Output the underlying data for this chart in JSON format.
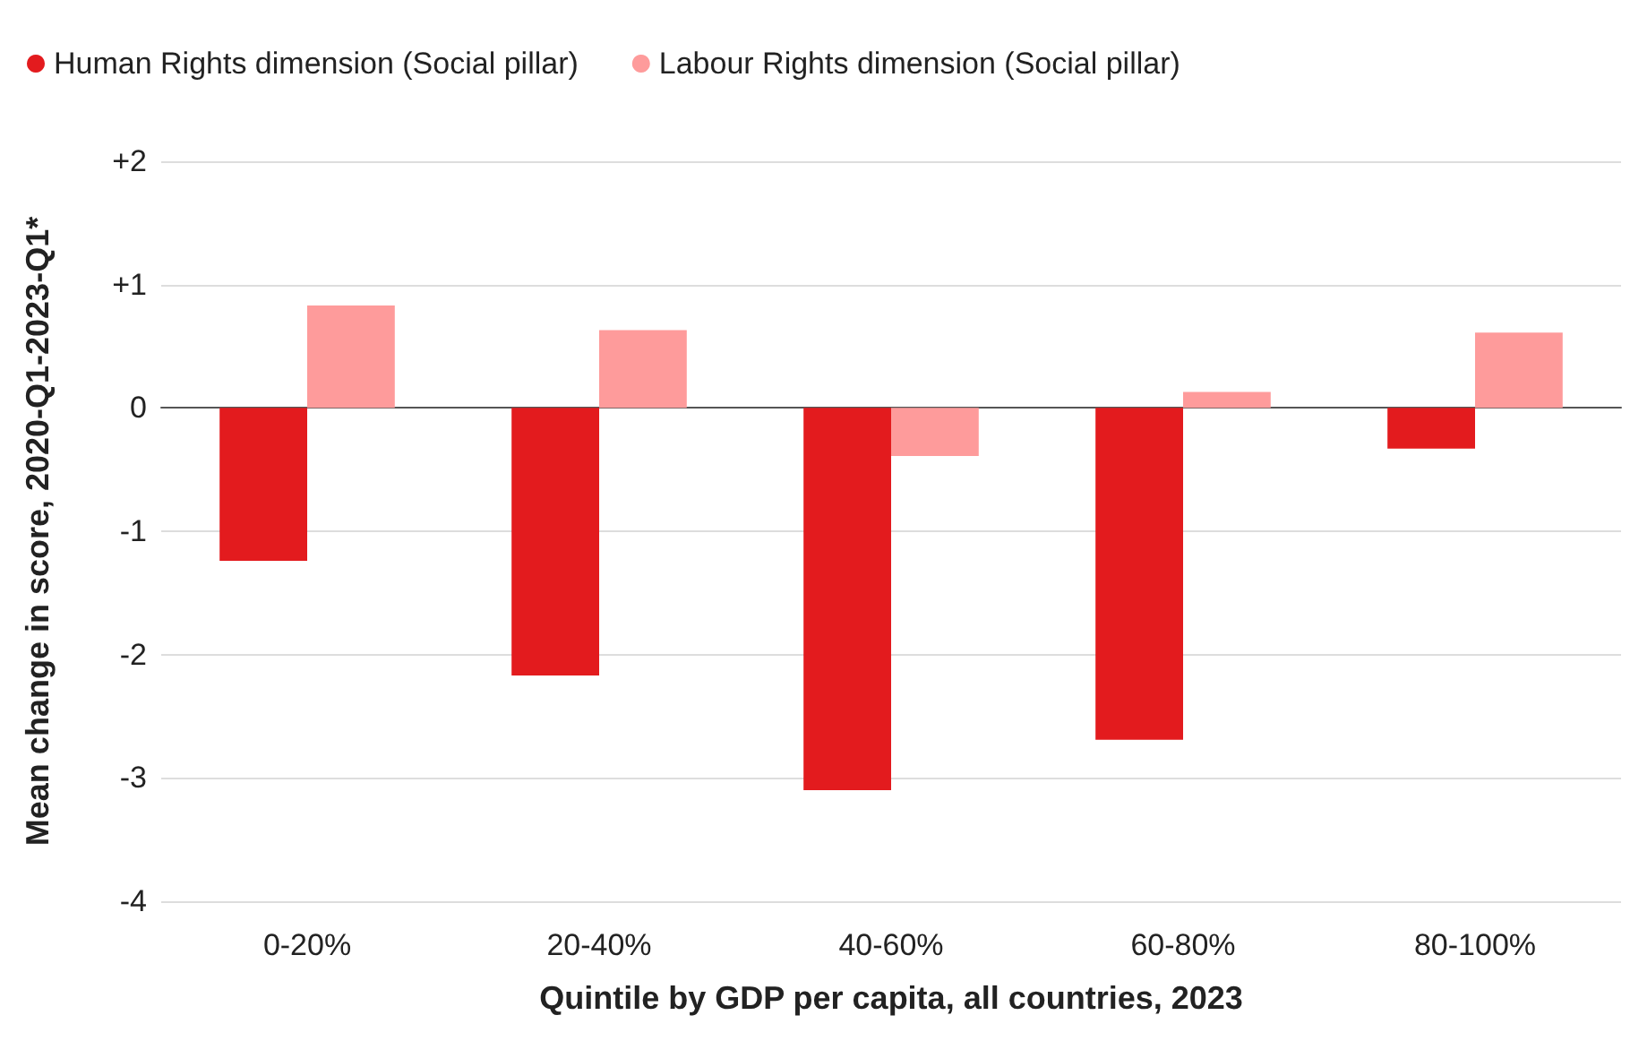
{
  "chart_data": {
    "type": "bar",
    "xlabel": "Quintile by GDP per capita, all countries, 2023",
    "ylabel": "Mean change in score, 2020-Q1-2023-Q1*",
    "categories": [
      "0-20%",
      "20-40%",
      "40-60%",
      "60-80%",
      "80-100%"
    ],
    "series": [
      {
        "name": "Human Rights dimension (Social pillar)",
        "color": "#e31b1e",
        "values": [
          -1.24,
          -2.17,
          -3.1,
          -2.69,
          -0.33
        ]
      },
      {
        "name": "Labour Rights dimension (Social pillar)",
        "color": "#fe9b9b",
        "values": [
          0.83,
          0.63,
          -0.39,
          0.13,
          0.61
        ]
      }
    ],
    "ylim": [
      -4,
      2
    ],
    "yticks": [
      -4,
      -3,
      -2,
      -1,
      0,
      {
        "value": 1,
        "label": "+1"
      },
      {
        "value": 2,
        "label": "+2"
      }
    ],
    "grid": "y",
    "legend": "top left"
  }
}
